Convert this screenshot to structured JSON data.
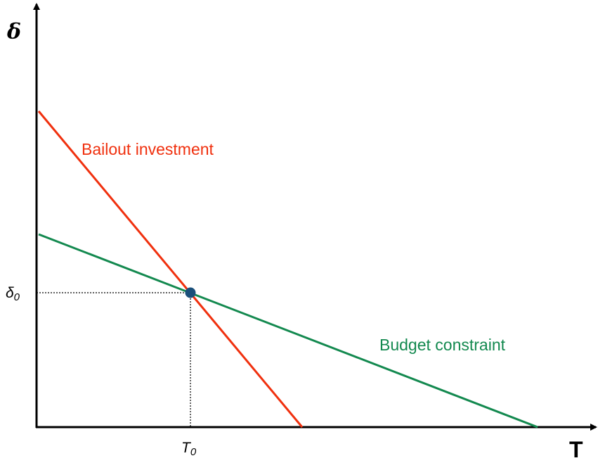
{
  "axes": {
    "y_label": "δ",
    "x_label": "T"
  },
  "equilibrium": {
    "y_label": {
      "base": "δ",
      "sub": "0"
    },
    "x_label": {
      "base": "T",
      "sub": "0"
    }
  },
  "lines": [
    {
      "label": "Bailout investment"
    },
    {
      "label": "Budget constraint"
    }
  ]
}
